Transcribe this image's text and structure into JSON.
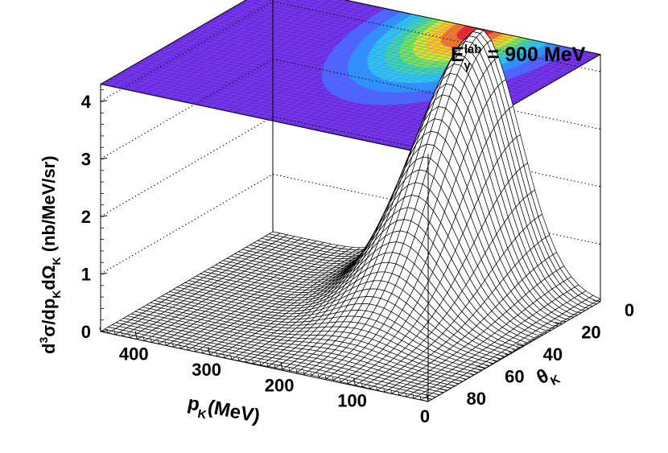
{
  "chart_data": {
    "type": "surface3d",
    "title": "E",
    "title_superscript": "lab",
    "title_subscript": "γ",
    "title_value": " = 900 MeV",
    "xlabel_main": "p",
    "xlabel_sub": "K",
    "xlabel_unit": "(MeV)",
    "ylabel_main": "θ",
    "ylabel_sub": "K",
    "zlabel_parts": [
      "d",
      "3",
      "σ/dp",
      "K",
      "dΩ",
      "K",
      " (nb/MeV/sr)"
    ],
    "x_ticks": [
      "0",
      "100",
      "200",
      "300",
      "400"
    ],
    "x_tick_values": [
      0,
      100,
      200,
      300,
      400
    ],
    "xlim": [
      0,
      450
    ],
    "y_ticks": [
      "0",
      "20",
      "40",
      "60",
      "80"
    ],
    "y_tick_values": [
      0,
      20,
      40,
      60,
      80
    ],
    "ylim": [
      0,
      90
    ],
    "z_ticks": [
      "0",
      "1",
      "2",
      "3",
      "4"
    ],
    "z_tick_values": [
      0,
      1,
      2,
      3,
      4
    ],
    "zlim": [
      0,
      4.3
    ],
    "peak": {
      "p_K": 165,
      "theta_K": 0,
      "value": 4.3
    },
    "width": {
      "sigma_p": 55,
      "sigma_theta": 28
    },
    "top_projection": "colz",
    "colors": {
      "projection_background": "#6a2be0",
      "mesh_line": "#000000"
    }
  }
}
